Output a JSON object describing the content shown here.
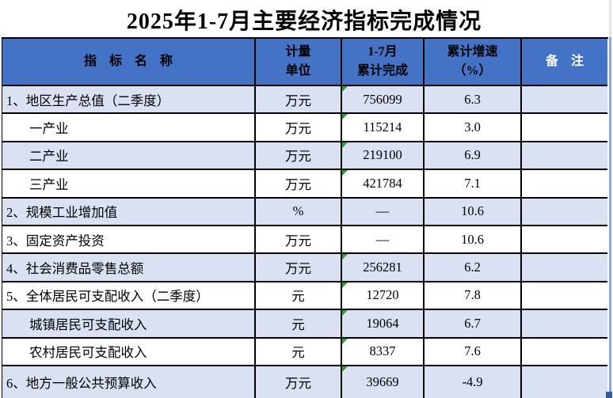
{
  "title": "2025年1-7月主要经济指标完成情况",
  "table": {
    "columns": [
      {
        "label": "指　标　名　称"
      },
      {
        "label": "计量\n单位"
      },
      {
        "label": "1-7月\n累计完成"
      },
      {
        "label": "累计增速\n（%）"
      },
      {
        "label": "备　注"
      }
    ],
    "rows": [
      {
        "name": "1、地区生产总值（二季度）",
        "indent": false,
        "unit": "万元",
        "value": "756099",
        "growth": "6.3",
        "note": "",
        "text_flag": true,
        "shaded": true
      },
      {
        "name": "一产业",
        "indent": true,
        "unit": "万元",
        "value": "115214",
        "growth": "3.0",
        "note": "",
        "text_flag": true,
        "shaded": false
      },
      {
        "name": "二产业",
        "indent": true,
        "unit": "万元",
        "value": "219100",
        "growth": "6.9",
        "note": "",
        "text_flag": true,
        "shaded": true
      },
      {
        "name": "三产业",
        "indent": true,
        "unit": "万元",
        "value": "421784",
        "growth": "7.1",
        "note": "",
        "text_flag": true,
        "shaded": false
      },
      {
        "name": "2、规模工业增加值",
        "indent": false,
        "unit": "%",
        "value": "—",
        "growth": "10.6",
        "note": "",
        "text_flag": false,
        "shaded": true
      },
      {
        "name": "3、固定资产投资",
        "indent": false,
        "unit": "万元",
        "value": "—",
        "growth": "10.6",
        "note": "",
        "text_flag": false,
        "shaded": false
      },
      {
        "name": "4、社会消费品零售总额",
        "indent": false,
        "unit": "万元",
        "value": "256281",
        "growth": "6.2",
        "note": "",
        "text_flag": true,
        "shaded": true
      },
      {
        "name": "5、全体居民可支配收入（二季度）",
        "indent": false,
        "unit": "元",
        "value": "12720",
        "growth": "7.8",
        "note": "",
        "text_flag": true,
        "shaded": false
      },
      {
        "name": "城镇居民可支配收入",
        "indent": true,
        "unit": "元",
        "value": "19064",
        "growth": "6.7",
        "note": "",
        "text_flag": true,
        "shaded": true
      },
      {
        "name": "农村居民可支配收入",
        "indent": true,
        "unit": "元",
        "value": "8337",
        "growth": "7.6",
        "note": "",
        "text_flag": true,
        "shaded": false
      },
      {
        "name": "6、地方一般公共预算收入",
        "indent": false,
        "unit": "万元",
        "value": "39669",
        "growth": "-4.9",
        "note": "",
        "text_flag": true,
        "shaded": true
      }
    ]
  },
  "colors": {
    "header_bg": "#4472C4",
    "shaded_row_bg": "#D9E1F2",
    "plain_row_bg": "#FFFFFF",
    "border": "#000000",
    "header_note_text": "#FFFFFF",
    "header_text": "#000000",
    "stored_as_text_flag": "#2FA043",
    "selection_line": "#8CA7DD",
    "fill_handle": "#35589E"
  }
}
